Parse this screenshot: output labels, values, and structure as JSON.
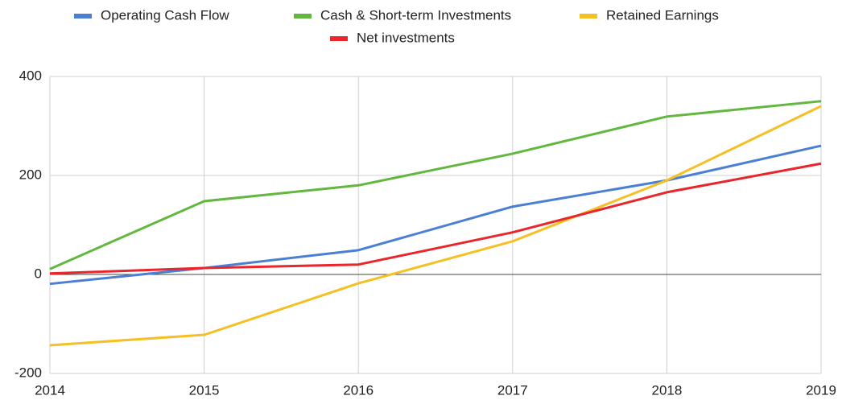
{
  "chart_data": {
    "type": "line",
    "x": [
      2014,
      2015,
      2016,
      2017,
      2018,
      2019
    ],
    "series": [
      {
        "name": "Operating Cash Flow",
        "color": "#4a7fd4",
        "values": [
          -19,
          13,
          49,
          137,
          190,
          260
        ]
      },
      {
        "name": "Cash & Short-term Investments",
        "color": "#62b83f",
        "values": [
          11,
          148,
          180,
          244,
          319,
          350
        ]
      },
      {
        "name": "Retained Earnings",
        "color": "#f5c026",
        "values": [
          -143,
          -122,
          -18,
          67,
          190,
          340
        ]
      },
      {
        "name": "Net investments",
        "color": "#e8262b",
        "values": [
          2,
          13,
          20,
          85,
          166,
          224
        ]
      }
    ],
    "xlim": [
      2014,
      2019
    ],
    "xticks": [
      2014,
      2015,
      2016,
      2017,
      2018,
      2019
    ],
    "ylim": [
      -200,
      400
    ],
    "yticks": [
      -200,
      0,
      200,
      400
    ],
    "grid": true,
    "legend": "top"
  }
}
